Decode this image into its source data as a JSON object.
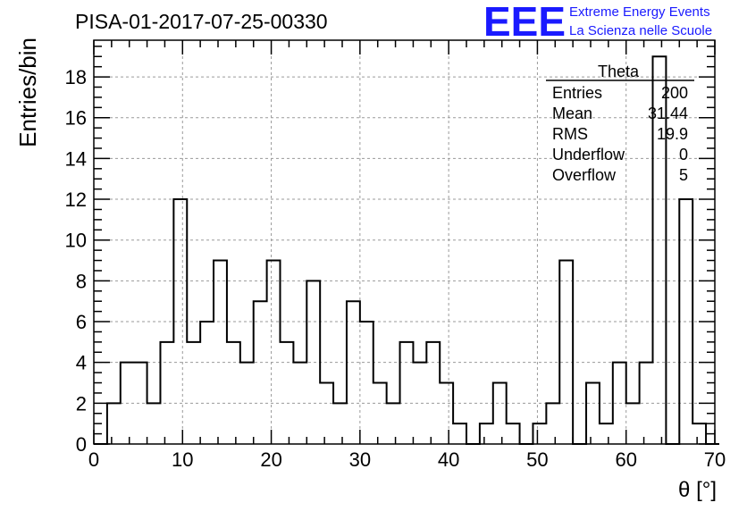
{
  "title": "PISA-01-2017-07-25-00330",
  "logo": {
    "mark": "EEE",
    "line1": "Extreme Energy Events",
    "line2": "La Scienza nelle Scuole",
    "color": "#1a1aff"
  },
  "stats_box": {
    "name": "Theta",
    "rows": [
      {
        "label": "Entries",
        "value": "200"
      },
      {
        "label": "Mean",
        "value": "31.44"
      },
      {
        "label": "RMS",
        "value": "19.9"
      },
      {
        "label": "Underflow",
        "value": "0"
      },
      {
        "label": "Overflow",
        "value": "5"
      }
    ]
  },
  "chart_data": {
    "type": "bar",
    "histogram": true,
    "title": "PISA-01-2017-07-25-00330",
    "xlabel": "θ [°]",
    "ylabel": "Entries/bin",
    "xlim": [
      0,
      70
    ],
    "ylim": [
      0,
      19.8
    ],
    "grid": true,
    "x_ticks": [
      0,
      10,
      20,
      30,
      40,
      50,
      60,
      70
    ],
    "y_ticks": [
      0,
      2,
      4,
      6,
      8,
      10,
      12,
      14,
      16,
      18
    ],
    "bin_width": 1.5,
    "bin_start": 0,
    "values": [
      0,
      2,
      4,
      4,
      2,
      5,
      12,
      5,
      6,
      9,
      5,
      4,
      7,
      9,
      5,
      4,
      8,
      3,
      2,
      7,
      6,
      3,
      2,
      5,
      4,
      5,
      3,
      1,
      0,
      1,
      3,
      1,
      0,
      1,
      2,
      9,
      0,
      3,
      1,
      4,
      2,
      4,
      19,
      0,
      12,
      1,
      0
    ]
  }
}
